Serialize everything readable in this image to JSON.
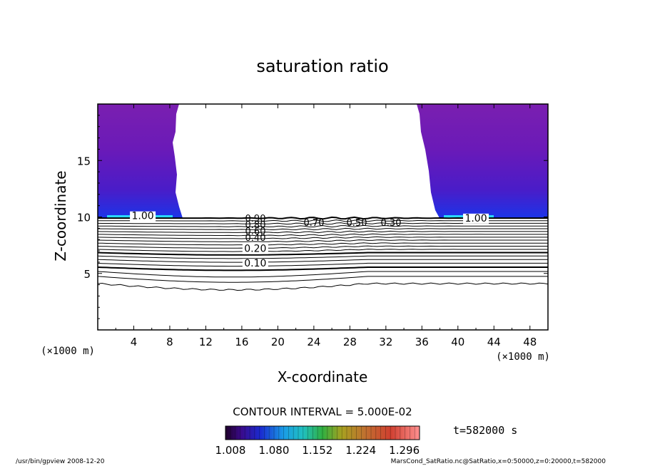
{
  "chart_data": {
    "type": "heatmap",
    "title": "saturation ratio",
    "xlabel": "X-coordinate",
    "ylabel": "Z-coordinate",
    "x_unit": "(×1000 m)",
    "z_unit": "(×1000 m)",
    "xlim": [
      0,
      50
    ],
    "ylim": [
      0,
      20
    ],
    "x_ticks": [
      "4",
      "8",
      "12",
      "16",
      "20",
      "24",
      "28",
      "32",
      "36",
      "40",
      "44",
      "48"
    ],
    "y_ticks": [
      "5",
      "10",
      "15"
    ],
    "contour_interval": "CONTOUR INTERVAL = 5.000E-02",
    "contour_labels": [
      {
        "text": "0.10",
        "x": 17.5,
        "z": 5.6
      },
      {
        "text": "0.20",
        "x": 17.5,
        "z": 6.9
      },
      {
        "text": "1.00",
        "x": 5.0,
        "z": 9.8
      },
      {
        "text": "1.00",
        "x": 42.0,
        "z": 9.6
      }
    ],
    "supersaturated_regions": [
      {
        "x": [
          0,
          9
        ],
        "z": [
          10,
          20
        ]
      },
      {
        "x": [
          36,
          50
        ],
        "z": [
          10,
          20
        ]
      }
    ],
    "colorbar": {
      "ticks": [
        "1.008",
        "1.080",
        "1.152",
        "1.224",
        "1.296"
      ]
    },
    "time_label": "t=582000 s"
  },
  "footer": {
    "left": "/usr/bin/gpview  2008-12-20",
    "right": "MarsCond_SatRatio.nc@SatRatio,x=0:50000,z=0:20000,t=582000"
  }
}
